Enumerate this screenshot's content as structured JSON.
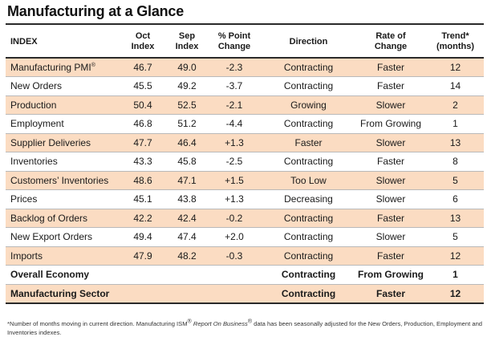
{
  "title": "Manufacturing at a Glance",
  "headers": {
    "index": "INDEX",
    "oct_1": "Oct",
    "oct_2": "Index",
    "sep_1": "Sep",
    "sep_2": "Index",
    "chg_1": "% Point",
    "chg_2": "Change",
    "direction": "Direction",
    "rate_1": "Rate of",
    "rate_2": "Change",
    "trend_1": "Trend*",
    "trend_2": "(months)"
  },
  "rows": [
    {
      "index": "Manufacturing PMI",
      "sup": "®",
      "oct": "46.7",
      "sep": "49.0",
      "change": "-2.3",
      "direction": "Contracting",
      "rate": "Faster",
      "trend": "12"
    },
    {
      "index": "New Orders",
      "oct": "45.5",
      "sep": "49.2",
      "change": "-3.7",
      "direction": "Contracting",
      "rate": "Faster",
      "trend": "14"
    },
    {
      "index": "Production",
      "oct": "50.4",
      "sep": "52.5",
      "change": "-2.1",
      "direction": "Growing",
      "rate": "Slower",
      "trend": "2"
    },
    {
      "index": "Employment",
      "oct": "46.8",
      "sep": "51.2",
      "change": "-4.4",
      "direction": "Contracting",
      "rate": "From Growing",
      "trend": "1"
    },
    {
      "index": "Supplier Deliveries",
      "oct": "47.7",
      "sep": "46.4",
      "change": "+1.3",
      "direction": "Faster",
      "rate": "Slower",
      "trend": "13"
    },
    {
      "index": "Inventories",
      "oct": "43.3",
      "sep": "45.8",
      "change": "-2.5",
      "direction": "Contracting",
      "rate": "Faster",
      "trend": "8"
    },
    {
      "index": "Customers’ Inventories",
      "oct": "48.6",
      "sep": "47.1",
      "change": "+1.5",
      "direction": "Too Low",
      "rate": "Slower",
      "trend": "5"
    },
    {
      "index": "Prices",
      "oct": "45.1",
      "sep": "43.8",
      "change": "+1.3",
      "direction": "Decreasing",
      "rate": "Slower",
      "trend": "6"
    },
    {
      "index": "Backlog of Orders",
      "oct": "42.2",
      "sep": "42.4",
      "change": "-0.2",
      "direction": "Contracting",
      "rate": "Faster",
      "trend": "13"
    },
    {
      "index": "New Export Orders",
      "oct": "49.4",
      "sep": "47.4",
      "change": "+2.0",
      "direction": "Contracting",
      "rate": "Slower",
      "trend": "5"
    },
    {
      "index": "Imports",
      "oct": "47.9",
      "sep": "48.2",
      "change": "-0.3",
      "direction": "Contracting",
      "rate": "Faster",
      "trend": "12"
    }
  ],
  "summary": [
    {
      "index": "Overall Economy",
      "direction": "Contracting",
      "rate": "From Growing",
      "trend": "1"
    },
    {
      "index": "Manufacturing Sector",
      "direction": "Contracting",
      "rate": "Faster",
      "trend": "12"
    }
  ],
  "footnote": {
    "part1": "*Number of months moving in current direction. Manufacturing ISM",
    "reg1": "®",
    "italic": "Report On Business",
    "reg2": "®",
    "part2": " data has been seasonally adjusted for the New Orders, Production, Employment and Inventories indexes."
  },
  "colors": {
    "shade": "#fbdcc2",
    "rule": "#2a2a2a"
  }
}
